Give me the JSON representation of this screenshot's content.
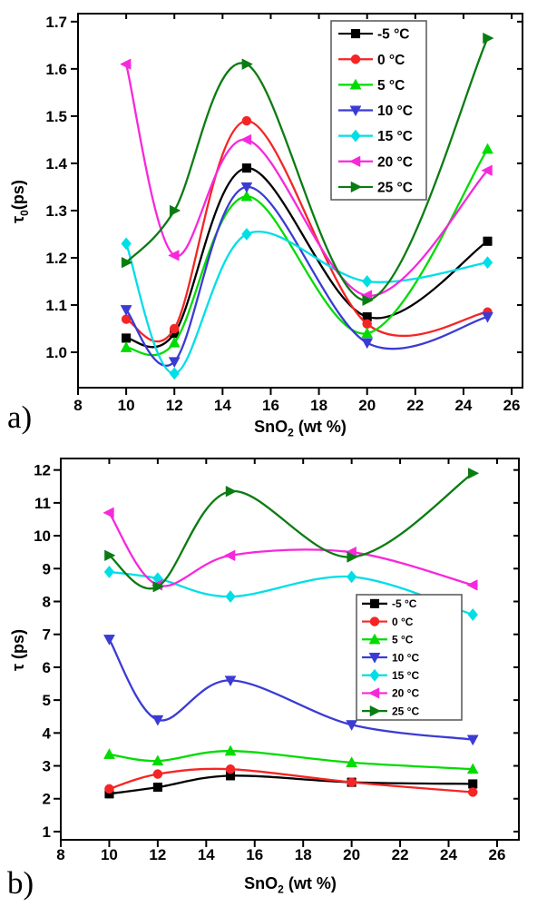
{
  "figure": {
    "background": "#ffffff",
    "panels": [
      {
        "panel_label": "a)",
        "ylabel_main": "τ",
        "ylabel_sub": "0",
        "ylabel_suffix": "(ps)",
        "xlabel_main": "SnO",
        "xlabel_sub": "2",
        "xlabel_suffix": " (wt %)"
      },
      {
        "panel_label": "b)",
        "ylabel_main": "τ",
        "ylabel_sub": "",
        "ylabel_suffix": " (ps)",
        "xlabel_main": "SnO",
        "xlabel_sub": "2",
        "xlabel_suffix": " (wt %)"
      }
    ]
  },
  "chart_data": [
    {
      "type": "line",
      "panel": "a",
      "title": "",
      "xlabel": "SnO₂ (wt %)",
      "ylabel": "τ₀(ps)",
      "x": [
        10,
        12,
        15,
        20,
        25
      ],
      "xlim": [
        8,
        26.45
      ],
      "ylim": [
        0.925,
        1.717
      ],
      "xticks": [
        8,
        10,
        12,
        14,
        16,
        18,
        20,
        22,
        24,
        26
      ],
      "yticks": [
        1.0,
        1.1,
        1.2,
        1.3,
        1.4,
        1.5,
        1.6,
        1.7
      ],
      "ytick_labels": [
        "1.0",
        "1.1",
        "1.2",
        "1.3",
        "1.4",
        "1.5",
        "1.6",
        "1.7"
      ],
      "grid": false,
      "legend_position": "top-right",
      "series": [
        {
          "name": "-5 °C",
          "color": "#000000",
          "marker": "square",
          "values": [
            1.03,
            1.04,
            1.39,
            1.075,
            1.235
          ]
        },
        {
          "name": "0 °C",
          "color": "#f52525",
          "marker": "circle",
          "values": [
            1.07,
            1.05,
            1.49,
            1.06,
            1.085
          ]
        },
        {
          "name": "5 °C",
          "color": "#00dc00",
          "marker": "triangle-up",
          "values": [
            1.01,
            1.02,
            1.33,
            1.04,
            1.43
          ]
        },
        {
          "name": "10 °C",
          "color": "#3b3bd4",
          "marker": "triangle-down",
          "values": [
            1.09,
            0.98,
            1.35,
            1.02,
            1.075
          ]
        },
        {
          "name": "15 °C",
          "color": "#00dee6",
          "marker": "diamond",
          "values": [
            1.23,
            0.955,
            1.25,
            1.15,
            1.19
          ]
        },
        {
          "name": "20 °C",
          "color": "#f728dc",
          "marker": "triangle-left",
          "values": [
            1.61,
            1.205,
            1.45,
            1.12,
            1.385
          ]
        },
        {
          "name": "25 °C",
          "color": "#0a7c12",
          "marker": "triangle-right",
          "values": [
            1.19,
            1.3,
            1.61,
            1.11,
            1.665
          ]
        }
      ]
    },
    {
      "type": "line",
      "panel": "b",
      "title": "",
      "xlabel": "SnO₂ (wt %)",
      "ylabel": "τ (ps)",
      "x": [
        10,
        12,
        15,
        20,
        25
      ],
      "xlim": [
        8,
        26.9
      ],
      "ylim": [
        0.75,
        12.35
      ],
      "xticks": [
        8,
        10,
        12,
        14,
        16,
        18,
        20,
        22,
        24,
        26
      ],
      "yticks": [
        1,
        2,
        3,
        4,
        5,
        6,
        7,
        8,
        9,
        10,
        11,
        12
      ],
      "ytick_labels": [
        "1",
        "2",
        "3",
        "4",
        "5",
        "6",
        "7",
        "8",
        "9",
        "10",
        "11",
        "12"
      ],
      "grid": false,
      "legend_position": "right",
      "series": [
        {
          "name": "-5 °C",
          "color": "#000000",
          "marker": "square",
          "values": [
            2.15,
            2.35,
            2.7,
            2.5,
            2.45
          ]
        },
        {
          "name": "0 °C",
          "color": "#f52525",
          "marker": "circle",
          "values": [
            2.3,
            2.75,
            2.9,
            2.5,
            2.2
          ]
        },
        {
          "name": "5 °C",
          "color": "#00dc00",
          "marker": "triangle-up",
          "values": [
            3.35,
            3.15,
            3.45,
            3.1,
            2.9
          ]
        },
        {
          "name": "10 °C",
          "color": "#3b3bd4",
          "marker": "triangle-down",
          "values": [
            6.85,
            4.4,
            5.6,
            4.25,
            3.8
          ]
        },
        {
          "name": "15 °C",
          "color": "#00dee6",
          "marker": "diamond",
          "values": [
            8.9,
            8.7,
            8.15,
            8.75,
            7.6
          ]
        },
        {
          "name": "20 °C",
          "color": "#f728dc",
          "marker": "triangle-left",
          "values": [
            10.7,
            8.5,
            9.4,
            9.5,
            8.5
          ]
        },
        {
          "name": "25 °C",
          "color": "#0a7c12",
          "marker": "triangle-right",
          "values": [
            9.4,
            8.45,
            11.35,
            9.35,
            11.9
          ]
        }
      ]
    }
  ]
}
